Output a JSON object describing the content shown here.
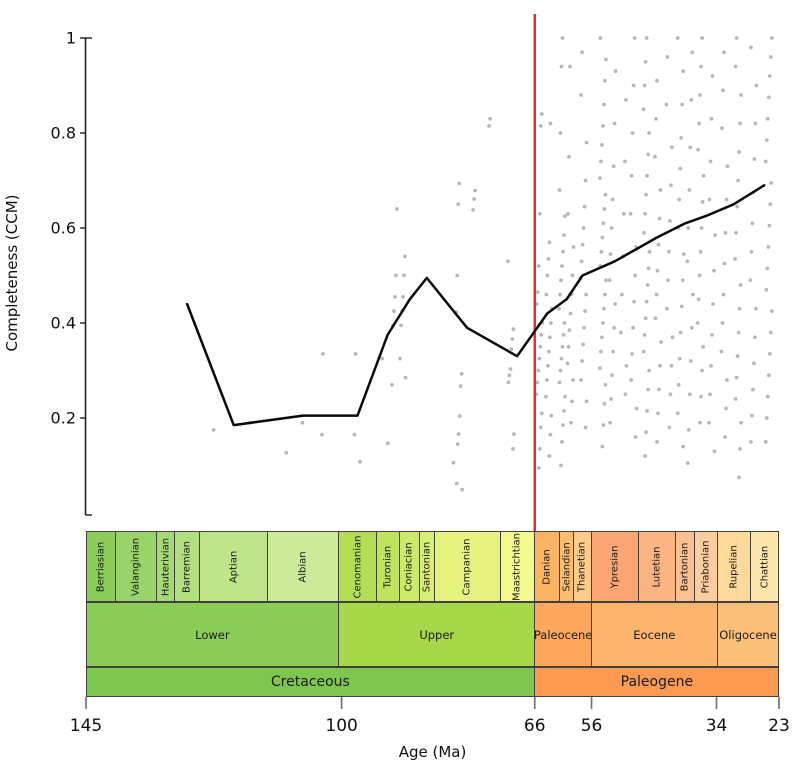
{
  "chart_data": {
    "type": "scatter",
    "xlabel": "Age (Ma)",
    "ylabel": "Completeness (CCM)",
    "x_axis": {
      "min": 145,
      "max": 23,
      "tick_values": [
        145,
        100,
        66,
        56,
        34,
        23
      ],
      "tick_labels": [
        "145",
        "100",
        "66",
        "56",
        "34",
        "23"
      ]
    },
    "y_axis": {
      "min": 0,
      "max": 1,
      "tick_values": [
        1,
        0.8,
        0.6,
        0.4,
        0.2
      ],
      "tick_labels": [
        "1",
        "0.8",
        "0.6",
        "0.4",
        "0.2"
      ]
    },
    "reference_line": {
      "type": "vertical",
      "x": 66,
      "color": "#E8262B"
    },
    "mean_line": {
      "color": "#0A0A0A",
      "points": [
        [
          127.2,
          0.44
        ],
        [
          119.0,
          0.185
        ],
        [
          106.8,
          0.205
        ],
        [
          97.2,
          0.205
        ],
        [
          91.9,
          0.375
        ],
        [
          88.0,
          0.45
        ],
        [
          85.0,
          0.495
        ],
        [
          77.9,
          0.39
        ],
        [
          69.1,
          0.33
        ],
        [
          63.8,
          0.42
        ],
        [
          60.4,
          0.45
        ],
        [
          57.6,
          0.5
        ],
        [
          51.9,
          0.53
        ],
        [
          44.5,
          0.58
        ],
        [
          39.5,
          0.61
        ],
        [
          35.9,
          0.625
        ],
        [
          31.0,
          0.65
        ],
        [
          25.6,
          0.69
        ]
      ]
    },
    "scatter_points": {
      "color": "#ABABAB",
      "columns": [
        {
          "age": 122.0,
          "values": [
            0.175
          ]
        },
        {
          "age": 116.5,
          "values": [
            0.19
          ]
        },
        {
          "age": 110.0,
          "values": [
            0.127
          ]
        },
        {
          "age": 107.0,
          "values": [
            0.19
          ]
        },
        {
          "age": 103.2,
          "values": [
            0.335,
            0.165
          ]
        },
        {
          "age": 97.3,
          "values": [
            0.335,
            0.165,
            0.108
          ]
        },
        {
          "age": 92.4,
          "values": [
            0.325,
            0.147
          ]
        },
        {
          "age": 90.8,
          "values": [
            0.64,
            0.5,
            0.455,
            0.425,
            0.395,
            0.27
          ]
        },
        {
          "age": 89.2,
          "values": [
            0.54,
            0.5,
            0.455,
            0.425,
            0.395,
            0.325,
            0.285
          ]
        },
        {
          "age": 80.5,
          "values": [
            0.106
          ]
        },
        {
          "age": 79.3,
          "values": [
            0.694,
            0.65,
            0.5,
            0.423,
            0.293,
            0.267,
            0.204,
            0.166,
            0.145,
            0.062,
            0.049
          ]
        },
        {
          "age": 76.3,
          "values": [
            0.679,
            0.661,
            0.638
          ]
        },
        {
          "age": 73.5,
          "values": [
            0.83,
            0.815
          ]
        },
        {
          "age": 70.2,
          "values": [
            0.53,
            0.387,
            0.366,
            0.345,
            0.303,
            0.29,
            0.275,
            0.166,
            0.135
          ]
        },
        {
          "age": 65.2,
          "values": [
            0.84,
            0.815,
            0.63,
            0.52,
            0.465,
            0.44,
            0.4,
            0.375,
            0.35,
            0.325,
            0.3,
            0.275,
            0.25,
            0.21,
            0.18,
            0.135,
            0.095
          ]
        },
        {
          "age": 63.5,
          "values": [
            0.82,
            0.57,
            0.535,
            0.5,
            0.46,
            0.43,
            0.4,
            0.37,
            0.34,
            0.31,
            0.28,
            0.245,
            0.205,
            0.165,
            0.12
          ]
        },
        {
          "age": 61.2,
          "values": [
            1.0,
            0.94,
            0.8,
            0.68,
            0.625,
            0.585,
            0.55,
            0.52,
            0.49,
            0.46,
            0.43,
            0.4,
            0.375,
            0.35,
            0.325,
            0.3,
            0.275,
            0.245,
            0.215,
            0.185,
            0.15,
            0.1
          ]
        },
        {
          "age": 59.7,
          "values": [
            0.94,
            0.75,
            0.63,
            0.56,
            0.5,
            0.46,
            0.42,
            0.385,
            0.35,
            0.315,
            0.28,
            0.235,
            0.19
          ]
        },
        {
          "age": 57.4,
          "values": [
            0.97,
            0.88,
            0.78,
            0.7,
            0.645,
            0.6,
            0.565,
            0.53,
            0.495,
            0.46,
            0.425,
            0.39,
            0.355,
            0.32,
            0.28,
            0.235,
            0.18
          ]
        },
        {
          "age": 54.0,
          "values": [
            1.0,
            0.955,
            0.91,
            0.86,
            0.815,
            0.775,
            0.74,
            0.705,
            0.67,
            0.64,
            0.61,
            0.58,
            0.55,
            0.52,
            0.49,
            0.46,
            0.43,
            0.4,
            0.37,
            0.34,
            0.305,
            0.27,
            0.23,
            0.185,
            0.14
          ]
        },
        {
          "age": 52.3,
          "values": [
            0.93,
            0.82,
            0.73,
            0.66,
            0.6,
            0.545,
            0.49,
            0.44,
            0.39,
            0.34,
            0.29,
            0.24,
            0.19
          ]
        },
        {
          "age": 50.3,
          "values": [
            0.87,
            0.74,
            0.63,
            0.54,
            0.46,
            0.38,
            0.31,
            0.25
          ]
        },
        {
          "age": 48.6,
          "values": [
            1.0,
            0.9,
            0.8,
            0.71,
            0.63,
            0.56,
            0.5,
            0.445,
            0.39,
            0.335,
            0.28,
            0.22,
            0.16
          ]
        },
        {
          "age": 46.3,
          "values": [
            1.0,
            0.95,
            0.9,
            0.85,
            0.8,
            0.755,
            0.71,
            0.67,
            0.63,
            0.59,
            0.55,
            0.515,
            0.48,
            0.445,
            0.41,
            0.375,
            0.34,
            0.3,
            0.26,
            0.215,
            0.17,
            0.12
          ]
        },
        {
          "age": 44.3,
          "values": [
            0.91,
            0.83,
            0.75,
            0.68,
            0.62,
            0.565,
            0.51,
            0.46,
            0.41,
            0.36,
            0.31,
            0.26,
            0.21,
            0.15
          ]
        },
        {
          "age": 42.3,
          "values": [
            0.96,
            0.86,
            0.77,
            0.69,
            0.615,
            0.55,
            0.49,
            0.43,
            0.37,
            0.31,
            0.25,
            0.18
          ]
        },
        {
          "age": 40.3,
          "values": [
            1.0,
            0.93,
            0.86,
            0.79,
            0.725,
            0.66,
            0.6,
            0.545,
            0.49,
            0.435,
            0.38,
            0.325,
            0.27,
            0.21,
            0.14
          ]
        },
        {
          "age": 38.7,
          "values": [
            0.97,
            0.87,
            0.77,
            0.68,
            0.6,
            0.53,
            0.46,
            0.39,
            0.32,
            0.25,
            0.175,
            0.105
          ]
        },
        {
          "age": 36.8,
          "values": [
            1.0,
            0.94,
            0.88,
            0.82,
            0.765,
            0.71,
            0.655,
            0.6,
            0.55,
            0.5,
            0.45,
            0.4,
            0.35,
            0.3,
            0.245,
            0.19
          ]
        },
        {
          "age": 34.8,
          "values": [
            0.92,
            0.83,
            0.74,
            0.66,
            0.585,
            0.51,
            0.44,
            0.375,
            0.31,
            0.25,
            0.19,
            0.13
          ]
        },
        {
          "age": 32.6,
          "values": [
            0.97,
            0.89,
            0.81,
            0.73,
            0.66,
            0.59,
            0.525,
            0.46,
            0.4,
            0.34,
            0.28,
            0.22,
            0.16
          ]
        },
        {
          "age": 30.2,
          "values": [
            1.0,
            0.94,
            0.88,
            0.82,
            0.76,
            0.7,
            0.645,
            0.59,
            0.535,
            0.48,
            0.43,
            0.38,
            0.33,
            0.285,
            0.24,
            0.19,
            0.135,
            0.075
          ]
        },
        {
          "age": 27.5,
          "values": [
            0.98,
            0.9,
            0.82,
            0.745,
            0.675,
            0.61,
            0.55,
            0.49,
            0.43,
            0.37,
            0.315,
            0.26,
            0.205,
            0.15
          ]
        },
        {
          "age": 24.8,
          "values": [
            1.0,
            0.96,
            0.92,
            0.875,
            0.83,
            0.785,
            0.74,
            0.695,
            0.65,
            0.605,
            0.56,
            0.515,
            0.47,
            0.425,
            0.38,
            0.335,
            0.29,
            0.245,
            0.2,
            0.15
          ]
        }
      ]
    },
    "timescale": {
      "stages": [
        {
          "name": "Berriasian",
          "from": 145.0,
          "to": 139.8,
          "color": "#8CCD57"
        },
        {
          "name": "Valanginian",
          "from": 139.8,
          "to": 132.6,
          "color": "#99D36A"
        },
        {
          "name": "Hauterivian",
          "from": 132.6,
          "to": 129.4,
          "color": "#A6D975"
        },
        {
          "name": "Barremian",
          "from": 129.4,
          "to": 125.0,
          "color": "#B3DF7F"
        },
        {
          "name": "Aptian",
          "from": 125.0,
          "to": 113.0,
          "color": "#BFE48A"
        },
        {
          "name": "Albian",
          "from": 113.0,
          "to": 100.5,
          "color": "#CCEA97"
        },
        {
          "name": "Cenomanian",
          "from": 100.5,
          "to": 93.9,
          "color": "#B3DE53"
        },
        {
          "name": "Turonian",
          "from": 93.9,
          "to": 89.8,
          "color": "#BFE35D"
        },
        {
          "name": "Coniacian",
          "from": 89.8,
          "to": 86.3,
          "color": "#CCE968"
        },
        {
          "name": "Santonian",
          "from": 86.3,
          "to": 83.6,
          "color": "#D9EF74"
        },
        {
          "name": "Campanian",
          "from": 83.6,
          "to": 72.1,
          "color": "#E6F47F"
        },
        {
          "name": "Maastrichtian",
          "from": 72.1,
          "to": 66.0,
          "color": "#F2FA8C"
        },
        {
          "name": "Danian",
          "from": 66.0,
          "to": 61.6,
          "color": "#FDB462"
        },
        {
          "name": "Selandian",
          "from": 61.6,
          "to": 59.2,
          "color": "#FDBF6F"
        },
        {
          "name": "Thanetian",
          "from": 59.2,
          "to": 56.0,
          "color": "#FDCC8A"
        },
        {
          "name": "Ypresian",
          "from": 56.0,
          "to": 47.8,
          "color": "#FCA773"
        },
        {
          "name": "Lutetian",
          "from": 47.8,
          "to": 41.2,
          "color": "#FCB482"
        },
        {
          "name": "Bartonian",
          "from": 41.2,
          "to": 37.8,
          "color": "#FCC090"
        },
        {
          "name": "Priabonian",
          "from": 37.8,
          "to": 33.9,
          "color": "#FDCDA1"
        },
        {
          "name": "Rupelian",
          "from": 33.9,
          "to": 28.1,
          "color": "#FED99A"
        },
        {
          "name": "Chattian",
          "from": 28.1,
          "to": 23.0,
          "color": "#FEE6AA"
        }
      ],
      "series": [
        {
          "name": "Lower",
          "from": 145.0,
          "to": 100.5,
          "color": "#8CCD57"
        },
        {
          "name": "Upper",
          "from": 100.5,
          "to": 66.0,
          "color": "#A6D84A"
        },
        {
          "name": "Paleocene",
          "from": 66.0,
          "to": 56.0,
          "color": "#FDA75F"
        },
        {
          "name": "Eocene",
          "from": 56.0,
          "to": 33.9,
          "color": "#FDB46C"
        },
        {
          "name": "Oligocene",
          "from": 33.9,
          "to": 23.0,
          "color": "#FDC07A"
        }
      ],
      "systems": [
        {
          "name": "Cretaceous",
          "from": 145.0,
          "to": 66.0,
          "color": "#7FC64E"
        },
        {
          "name": "Paleogene",
          "from": 66.0,
          "to": 23.0,
          "color": "#FD9A52"
        }
      ]
    }
  }
}
